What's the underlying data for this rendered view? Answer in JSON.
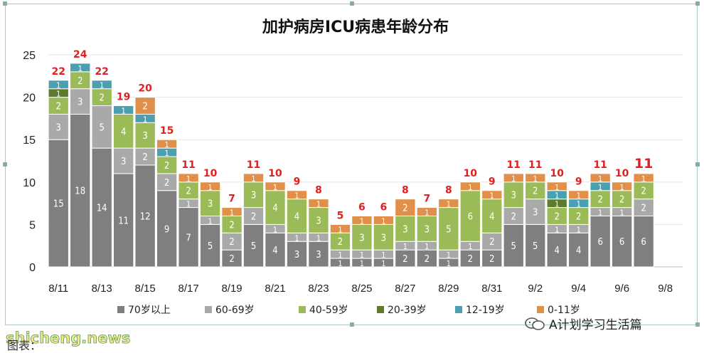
{
  "chart_data": {
    "type": "bar",
    "stacked": true,
    "title": "加护病房ICU病患年龄分布",
    "ylim": [
      0,
      25
    ],
    "yticks": [
      "0",
      "5",
      "10",
      "15",
      "20",
      "25"
    ],
    "grid": true,
    "legend_position": "bottom",
    "categories": [
      "8/11",
      "8/12",
      "8/13",
      "8/14",
      "8/15",
      "8/16",
      "8/17",
      "8/18",
      "8/19",
      "8/20",
      "8/21",
      "8/22",
      "8/23",
      "8/24",
      "8/25",
      "8/26",
      "8/27",
      "8/28",
      "8/29",
      "8/30",
      "8/31",
      "9/1",
      "9/2",
      "9/3",
      "9/4",
      "9/5",
      "9/6",
      "9/7"
    ],
    "x_tick_labels": [
      "8/11",
      "8/13",
      "8/15",
      "8/17",
      "8/19",
      "8/21",
      "8/23",
      "8/25",
      "8/27",
      "8/29",
      "8/31",
      "9/2",
      "9/4",
      "9/6",
      "9/8"
    ],
    "totals": [
      22,
      24,
      22,
      19,
      20,
      15,
      11,
      10,
      7,
      11,
      10,
      9,
      8,
      5,
      6,
      6,
      8,
      7,
      8,
      10,
      9,
      11,
      11,
      10,
      9,
      11,
      10,
      11
    ],
    "series": [
      {
        "name": "70岁以上",
        "color": "#7f7f7f",
        "values": [
          15,
          18,
          14,
          11,
          12,
          9,
          7,
          5,
          2,
          5,
          4,
          3,
          3,
          1,
          1,
          1,
          2,
          2,
          1,
          2,
          2,
          5,
          5,
          4,
          4,
          6,
          6,
          6
        ]
      },
      {
        "name": "60-69岁",
        "color": "#a9a9a9",
        "values": [
          3,
          3,
          5,
          3,
          2,
          2,
          1,
          1,
          2,
          2,
          1,
          1,
          1,
          1,
          1,
          1,
          1,
          1,
          1,
          1,
          2,
          2,
          3,
          1,
          1,
          1,
          1,
          2
        ]
      },
      {
        "name": "40-59岁",
        "color": "#9bbb59",
        "values": [
          2,
          2,
          2,
          4,
          3,
          2,
          2,
          3,
          2,
          3,
          4,
          4,
          3,
          2,
          3,
          3,
          3,
          3,
          5,
          6,
          4,
          3,
          2,
          2,
          2,
          2,
          2,
          2
        ]
      },
      {
        "name": "20-39岁",
        "color": "#5e7a2a",
        "values": [
          1,
          0,
          0,
          0,
          0,
          0,
          0,
          0,
          0,
          0,
          0,
          0,
          0,
          0,
          0,
          0,
          0,
          0,
          0,
          0,
          0,
          0,
          0,
          1,
          0,
          0,
          0,
          0
        ]
      },
      {
        "name": "12-19岁",
        "color": "#4aa0b0",
        "values": [
          1,
          1,
          1,
          1,
          1,
          1,
          0,
          0,
          0,
          0,
          0,
          0,
          0,
          0,
          0,
          0,
          0,
          0,
          0,
          0,
          0,
          0,
          0,
          1,
          1,
          1,
          0,
          0
        ]
      },
      {
        "name": "0-11岁",
        "color": "#e0904a",
        "values": [
          0,
          0,
          0,
          0,
          2,
          1,
          1,
          1,
          1,
          1,
          1,
          1,
          1,
          1,
          1,
          1,
          2,
          1,
          1,
          1,
          1,
          1,
          1,
          1,
          1,
          1,
          1,
          1
        ]
      }
    ]
  },
  "colors": {
    "total_label": "#e02020",
    "segment_label": "#ffffff",
    "frame_border": "#a9c9c6"
  },
  "footer": {
    "watermark": "shicheng.news",
    "caption": "图表：",
    "wechat_label": "A计划学习生活篇",
    "wechat_icon": "wechat-icon"
  }
}
